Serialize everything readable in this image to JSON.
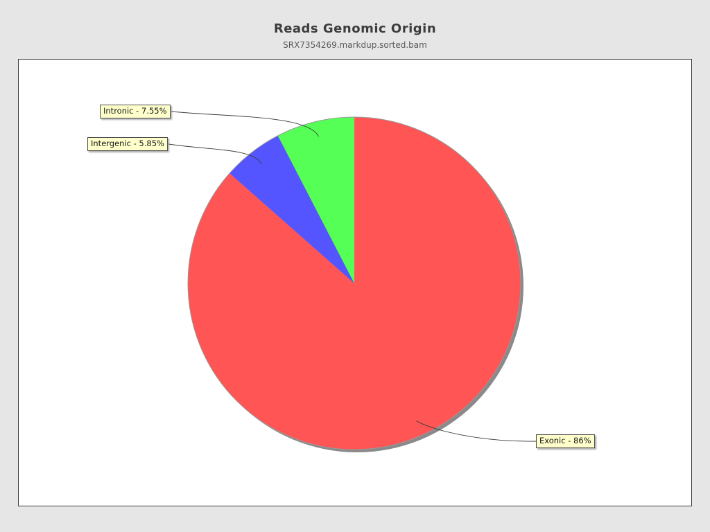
{
  "header": {
    "title": "Reads Genomic Origin",
    "subtitle": "SRX7354269.markdup.sorted.bam"
  },
  "chart_data": {
    "type": "pie",
    "title": "Reads Genomic Origin",
    "subtitle": "SRX7354269.markdup.sorted.bam",
    "start_angle": "12-o-clock",
    "direction": "clockwise",
    "slices": [
      {
        "label": "Exonic",
        "value": 86,
        "display": "Exonic - 86%",
        "color": "#ff5555"
      },
      {
        "label": "Intergenic",
        "value": 5.85,
        "display": "Intergenic - 5.85%",
        "color": "#5555ff"
      },
      {
        "label": "Intronic",
        "value": 7.55,
        "display": "Intronic - 7.55%",
        "color": "#55ff55"
      }
    ],
    "colors": {
      "shadow": "#8a8a8a",
      "outline": "#999999",
      "callout_line": "#3c3c3c",
      "label_background": "#ffffcc",
      "label_border": "#4d4d4d",
      "panel_background": "#ffffff",
      "page_background": "#e6e6e6"
    },
    "legend_position": "none",
    "grid": false
  }
}
